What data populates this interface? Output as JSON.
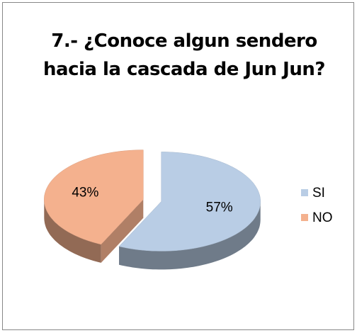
{
  "chart_data": {
    "type": "pie",
    "title": "7.- ¿Conoce algun sendero hacia la cascada de Jun Jun?",
    "categories": [
      "SI",
      "NO"
    ],
    "values": [
      57,
      43
    ],
    "value_labels": [
      "57%",
      "43%"
    ],
    "colors": [
      "#b9cde5",
      "#f4b18e"
    ],
    "legend": "right",
    "three_d": true
  }
}
